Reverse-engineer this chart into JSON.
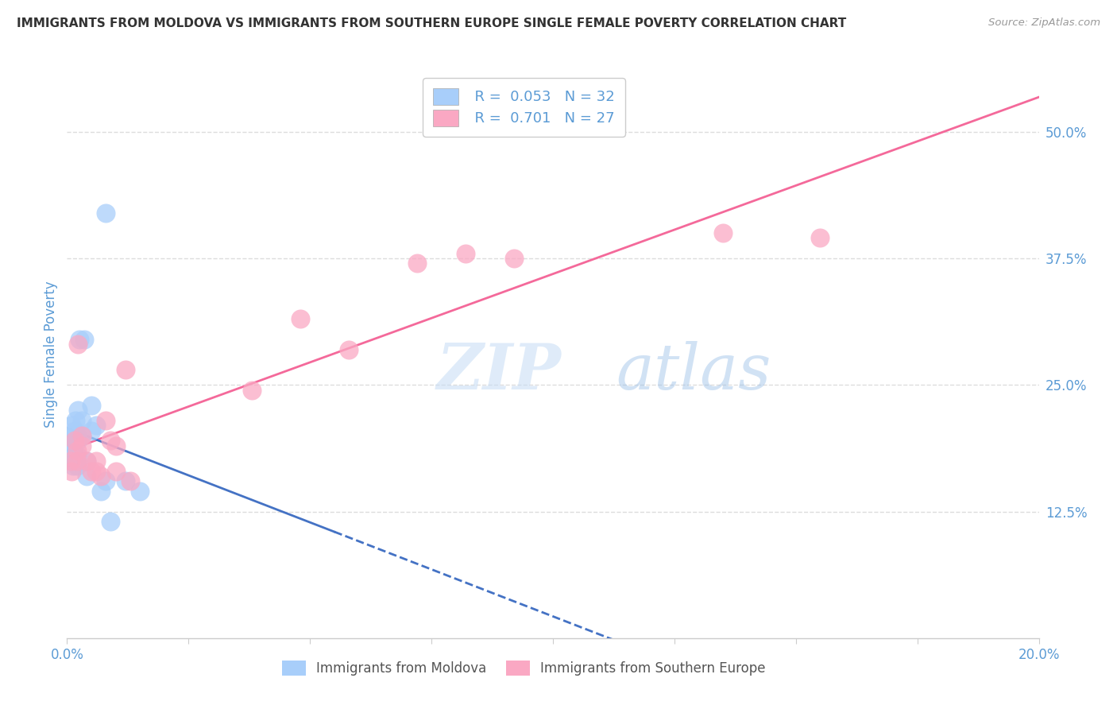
{
  "title": "IMMIGRANTS FROM MOLDOVA VS IMMIGRANTS FROM SOUTHERN EUROPE SINGLE FEMALE POVERTY CORRELATION CHART",
  "source": "Source: ZipAtlas.com",
  "ylabel": "Single Female Poverty",
  "ylabel_right_labels": [
    "50.0%",
    "37.5%",
    "25.0%",
    "12.5%"
  ],
  "ylabel_right_values": [
    0.5,
    0.375,
    0.25,
    0.125
  ],
  "xlim": [
    0.0,
    0.2
  ],
  "ylim": [
    0.0,
    0.56
  ],
  "legend_r1": "R = 0.053",
  "legend_n1": "N = 32",
  "legend_r2": "R = 0.701",
  "legend_n2": "N = 27",
  "label1": "Immigrants from Moldova",
  "label2": "Immigrants from Southern Europe",
  "color1": "#A8CEFA",
  "color2": "#FAA8C3",
  "line_color1": "#4472C4",
  "line_color2": "#F4699A",
  "title_color": "#333333",
  "source_color": "#999999",
  "tick_color": "#5B9BD5",
  "grid_color": "#DDDDDD",
  "watermark_color": "#D0E8FA",
  "moldova_x": [
    0.0008,
    0.0008,
    0.001,
    0.001,
    0.001,
    0.0012,
    0.0012,
    0.0013,
    0.0015,
    0.0015,
    0.0015,
    0.0018,
    0.002,
    0.002,
    0.002,
    0.0022,
    0.0022,
    0.0025,
    0.003,
    0.003,
    0.0035,
    0.004,
    0.004,
    0.005,
    0.005,
    0.006,
    0.007,
    0.008,
    0.009,
    0.012,
    0.008,
    0.015
  ],
  "moldova_y": [
    0.195,
    0.185,
    0.21,
    0.2,
    0.175,
    0.2,
    0.185,
    0.17,
    0.205,
    0.195,
    0.18,
    0.215,
    0.2,
    0.18,
    0.17,
    0.225,
    0.195,
    0.295,
    0.2,
    0.215,
    0.295,
    0.16,
    0.175,
    0.205,
    0.23,
    0.21,
    0.145,
    0.155,
    0.115,
    0.155,
    0.42,
    0.145
  ],
  "southern_x": [
    0.0008,
    0.001,
    0.0015,
    0.002,
    0.002,
    0.0022,
    0.003,
    0.003,
    0.004,
    0.005,
    0.006,
    0.006,
    0.007,
    0.008,
    0.009,
    0.01,
    0.01,
    0.012,
    0.013,
    0.038,
    0.048,
    0.058,
    0.072,
    0.082,
    0.092,
    0.135,
    0.155
  ],
  "southern_y": [
    0.175,
    0.165,
    0.195,
    0.185,
    0.175,
    0.29,
    0.19,
    0.2,
    0.175,
    0.165,
    0.175,
    0.165,
    0.16,
    0.215,
    0.195,
    0.19,
    0.165,
    0.265,
    0.155,
    0.245,
    0.315,
    0.285,
    0.37,
    0.38,
    0.375,
    0.4,
    0.395
  ]
}
